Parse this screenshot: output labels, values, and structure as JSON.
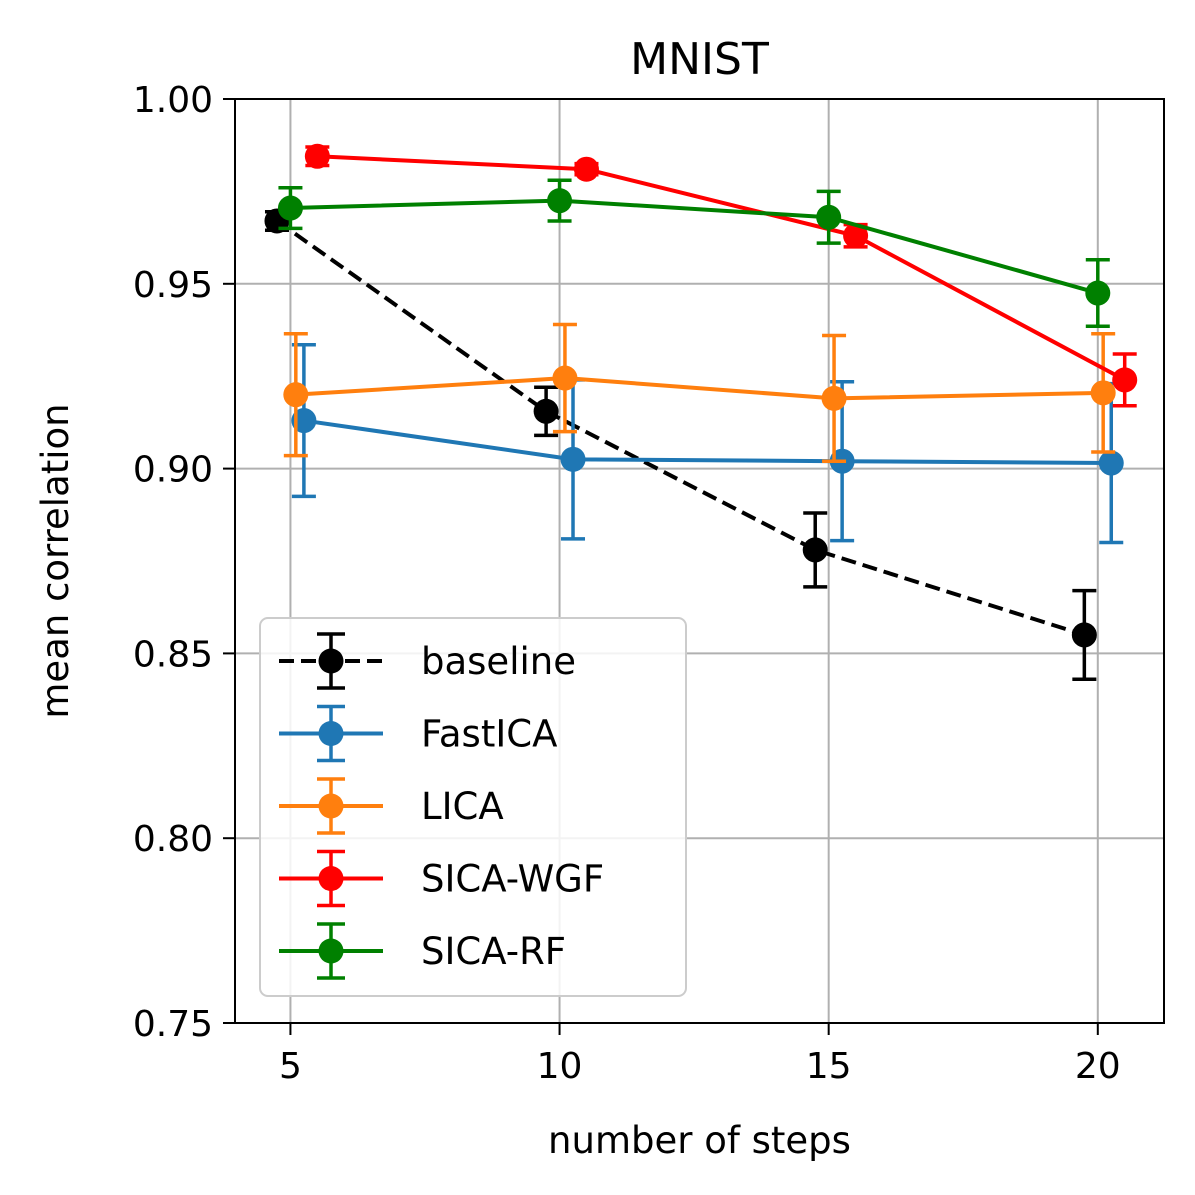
{
  "chart_data": {
    "type": "line",
    "title": "MNIST",
    "xlabel": "number of steps",
    "ylabel": "mean correlation",
    "xlim": [
      3.97,
      21.23
    ],
    "ylim": [
      0.75,
      1.0
    ],
    "xticks": [
      5,
      10,
      15,
      20
    ],
    "xtick_labels": [
      "5",
      "10",
      "15",
      "20"
    ],
    "yticks": [
      0.75,
      0.8,
      0.85,
      0.9,
      0.95,
      1.0
    ],
    "ytick_labels": [
      "0.75",
      "0.80",
      "0.85",
      "0.90",
      "0.95",
      "1.00"
    ],
    "grid": true,
    "legend_position": "lower-left",
    "series": [
      {
        "name": "baseline",
        "color": "#000000",
        "dashed": true,
        "x": [
          4.75,
          9.75,
          14.75,
          19.75
        ],
        "y": [
          0.967,
          0.9155,
          0.878,
          0.855
        ],
        "err": [
          0.0025,
          0.0065,
          0.01,
          0.012
        ]
      },
      {
        "name": "FastICA",
        "color": "#1f77b4",
        "dashed": false,
        "x": [
          5.25,
          10.25,
          15.25,
          20.25
        ],
        "y": [
          0.913,
          0.9025,
          0.902,
          0.9015
        ],
        "err": [
          0.0205,
          0.0215,
          0.0215,
          0.0215
        ]
      },
      {
        "name": "LICA",
        "color": "#ff7f0e",
        "dashed": false,
        "x": [
          5.1,
          10.1,
          15.1,
          20.1
        ],
        "y": [
          0.92,
          0.9245,
          0.919,
          0.9205
        ],
        "err": [
          0.0165,
          0.0145,
          0.017,
          0.016
        ]
      },
      {
        "name": "SICA-WGF",
        "color": "#ff0000",
        "dashed": false,
        "x": [
          5.5,
          10.5,
          15.5,
          20.5
        ],
        "y": [
          0.9845,
          0.981,
          0.963,
          0.924
        ],
        "err": [
          0.0025,
          0.0015,
          0.003,
          0.007
        ]
      },
      {
        "name": "SICA-RF",
        "color": "#008000",
        "dashed": false,
        "x": [
          5.0,
          10.0,
          15.0,
          20.0
        ],
        "y": [
          0.9705,
          0.9725,
          0.968,
          0.9475
        ],
        "err": [
          0.0055,
          0.0055,
          0.007,
          0.009
        ]
      }
    ]
  }
}
